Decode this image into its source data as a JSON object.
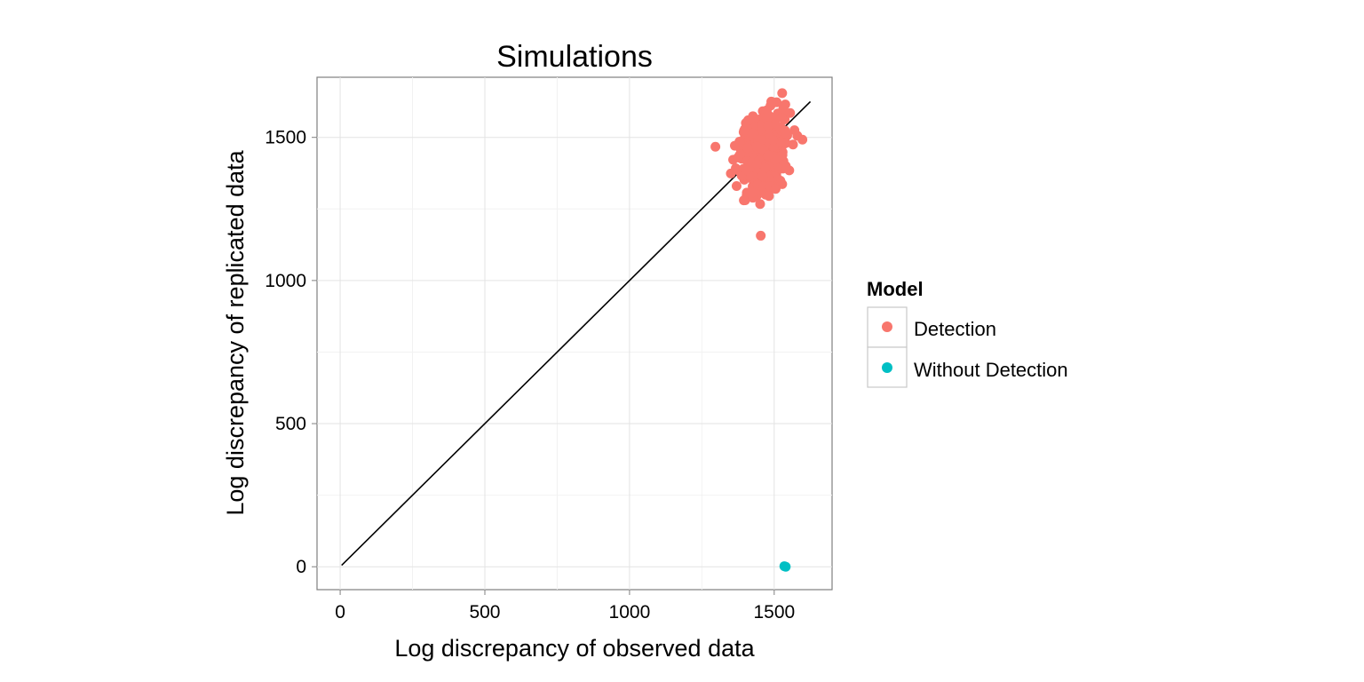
{
  "chart_data": {
    "type": "scatter",
    "title": "Simulations",
    "xlabel": "Log discrepancy of observed data",
    "ylabel": "Log discrepancy of replicated data",
    "xlim": [
      -80,
      1700
    ],
    "ylim": [
      -80,
      1710
    ],
    "x_ticks": [
      0,
      500,
      1000,
      1500
    ],
    "y_ticks": [
      0,
      500,
      1000,
      1500
    ],
    "x_tick_labels": [
      "0",
      "500",
      "1000",
      "1500"
    ],
    "y_tick_labels": [
      "0",
      "500",
      "1000",
      "1500"
    ],
    "grid": true,
    "reference_line": {
      "x": [
        5,
        1625
      ],
      "y": [
        5,
        1625
      ]
    },
    "legend": {
      "title": "Model",
      "placement": "right",
      "entries": [
        {
          "label": "Detection",
          "color": "#F8766D"
        },
        {
          "label": "Without Detection",
          "color": "#00BFC4"
        }
      ]
    },
    "series": [
      {
        "name": "Detection",
        "color": "#F8766D",
        "cluster": {
          "center_x": 1465,
          "center_y": 1445,
          "sd_x": 40,
          "sd_y": 65,
          "n": 400
        },
        "points": [
          [
            1490,
            1625
          ],
          [
            1475,
            1595
          ],
          [
            1555,
            1585
          ],
          [
            1570,
            1525
          ],
          [
            1565,
            1475
          ],
          [
            1380,
            1485
          ],
          [
            1375,
            1430
          ],
          [
            1370,
            1330
          ],
          [
            1395,
            1280
          ],
          [
            1420,
            1305
          ],
          [
            1505,
            1320
          ],
          [
            1460,
            1365
          ],
          [
            1540,
            1400
          ],
          [
            1410,
            1560
          ]
        ]
      },
      {
        "name": "Without Detection",
        "color": "#00BFC4",
        "points": [
          [
            1535,
            2
          ],
          [
            1540,
            0
          ]
        ]
      }
    ]
  }
}
